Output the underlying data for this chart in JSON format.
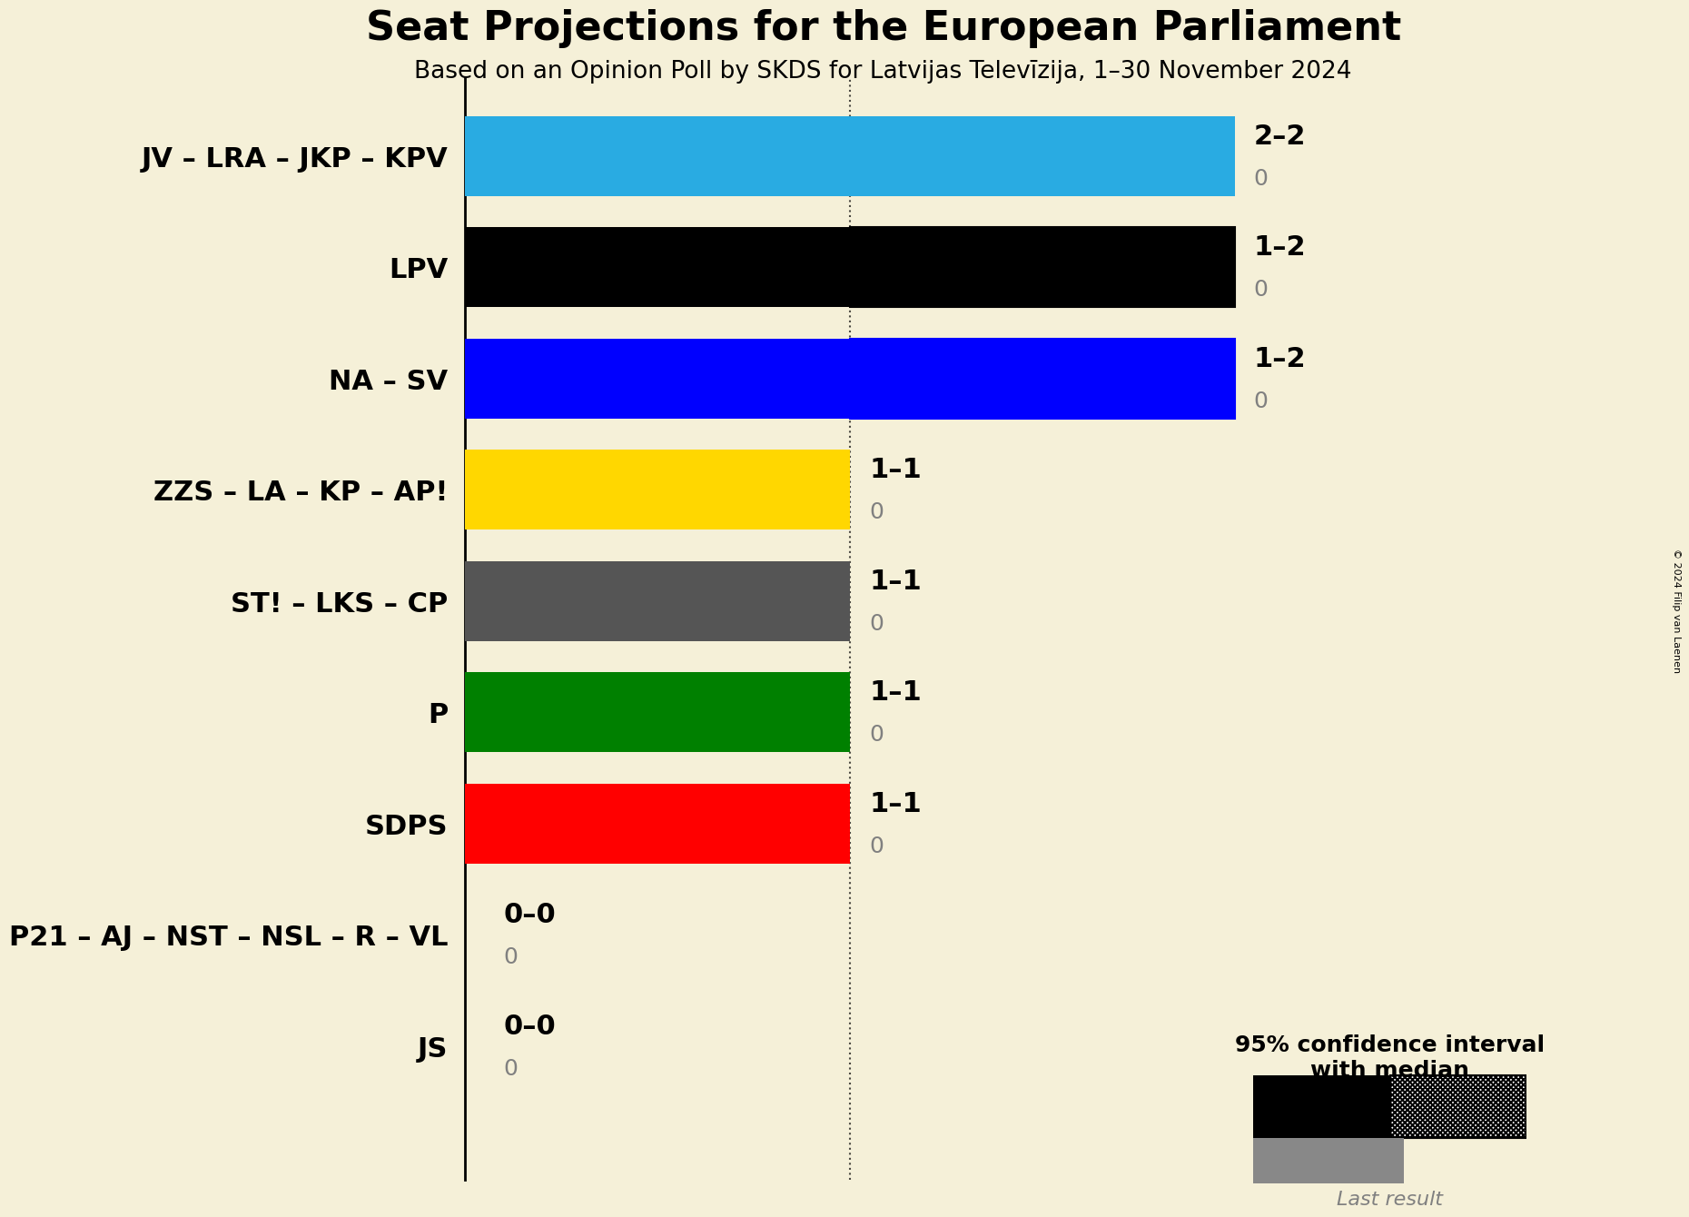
{
  "title": "Seat Projections for the European Parliament",
  "subtitle": "Based on an Opinion Poll by SKDS for Latvijas Televīzija, 1–30 November 2024",
  "copyright": "© 2024 Filip van Laenen",
  "background_color": "#f5f0d8",
  "parties": [
    {
      "label": "JV – LRA – JKP – KPV",
      "median": 2,
      "low": 2,
      "high": 2,
      "last": 0,
      "color": "#29ABE2",
      "hatch": null
    },
    {
      "label": "LPV",
      "median": 1,
      "low": 1,
      "high": 2,
      "last": 0,
      "color": "#000000",
      "hatch": "////"
    },
    {
      "label": "NA – SV",
      "median": 1,
      "low": 1,
      "high": 2,
      "last": 0,
      "color": "#0000FF",
      "hatch": "xxxx"
    },
    {
      "label": "ZZS – LA – KP – AP!",
      "median": 1,
      "low": 1,
      "high": 1,
      "last": 0,
      "color": "#FFD700",
      "hatch": null
    },
    {
      "label": "ST! – LKS – CP",
      "median": 1,
      "low": 1,
      "high": 1,
      "last": 0,
      "color": "#555555",
      "hatch": null
    },
    {
      "label": "P",
      "median": 1,
      "low": 1,
      "high": 1,
      "last": 0,
      "color": "#008000",
      "hatch": null
    },
    {
      "label": "SDPS",
      "median": 1,
      "low": 1,
      "high": 1,
      "last": 0,
      "color": "#FF0000",
      "hatch": null
    },
    {
      "label": "P21 – AJ – NST – NSL – R – VL",
      "median": 0,
      "low": 0,
      "high": 0,
      "last": 0,
      "color": "#888888",
      "hatch": null
    },
    {
      "label": "JS",
      "median": 0,
      "low": 0,
      "high": 0,
      "last": 0,
      "color": "#888888",
      "hatch": null
    }
  ],
  "xlim": [
    0,
    2.55
  ],
  "dotted_line_x": 1.0,
  "bar_height": 0.72,
  "label_fontsize": 22,
  "range_fontsize": 22,
  "last_fontsize": 18,
  "title_fontsize": 32,
  "subtitle_fontsize": 19,
  "legend_fontsize": 18,
  "hatch_density": 6
}
